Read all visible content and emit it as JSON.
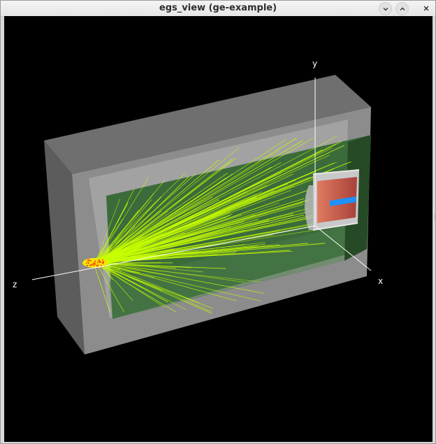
{
  "window": {
    "title": "egs_view (ge-example)",
    "buttons": {
      "minimize_icon": "chevron-down-icon",
      "maximize_icon": "chevron-up-icon",
      "close_icon": "close-icon"
    }
  },
  "viewport": {
    "background": "#000000",
    "axes": {
      "x_label": "x",
      "y_label": "y",
      "z_label": "z"
    },
    "colors": {
      "outer_box": "#8a8a8a",
      "inner_cavity": "#3f6a3f",
      "tracks": "#c8ff00",
      "detector": "#c86450",
      "detector_core": "#1e90ff",
      "source": "#ff2a00"
    }
  }
}
